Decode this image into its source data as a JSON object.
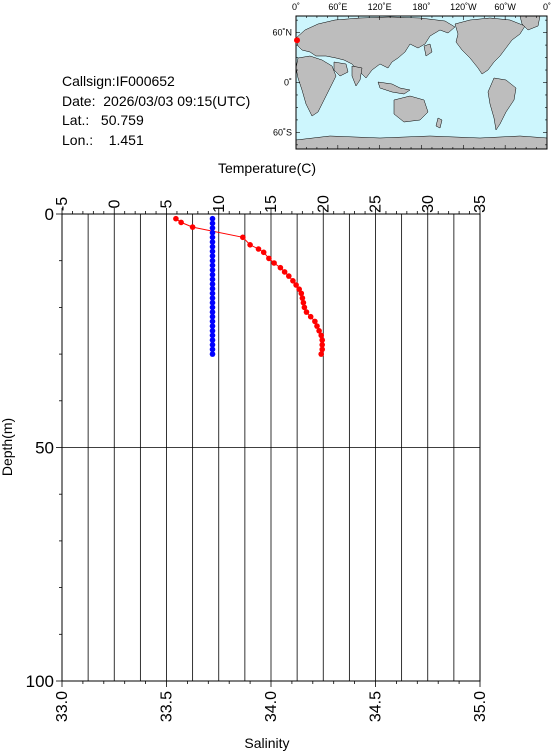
{
  "info": {
    "callsign": "Callsign:IF000652",
    "date": "Date:  2026/03/03 09:15(UTC)",
    "lat": "Lat.:   50.759",
    "lon": "Lon.:    1.451"
  },
  "map": {
    "lon_labels": [
      "0˚",
      "60˚E",
      "120˚E",
      "180˚",
      "120˚W",
      "60˚W",
      "0˚"
    ],
    "lat_labels": [
      "60˚N",
      "0˚",
      "60˚S"
    ],
    "ocean_color": "#cdf6fd",
    "land_color": "#bdbdbd",
    "marker_color": "#ff0000",
    "float_position": {
      "lon": 1.451,
      "lat": 50.759
    }
  },
  "chart_data": {
    "type": "scatter",
    "depth_axis": {
      "label": "Depth(m)",
      "range": [
        0,
        100
      ],
      "ticks": [
        "0",
        "50",
        "100"
      ],
      "inverted": true
    },
    "temperature_axis": {
      "label": "Temperature(C)",
      "range": [
        -5,
        35
      ],
      "ticks": [
        "-5",
        "0",
        "5",
        "10",
        "15",
        "20",
        "25",
        "30",
        "35"
      ]
    },
    "salinity_axis": {
      "label": "Salinity",
      "range": [
        33.0,
        35.0
      ],
      "ticks": [
        "33.0",
        "33.5",
        "34.0",
        "34.5",
        "35.0"
      ]
    },
    "grid": true,
    "series": [
      {
        "color": "#ff0000",
        "axis": "temperature",
        "points": [
          {
            "depth": 1.0,
            "value": 5.9
          },
          {
            "depth": 1.8,
            "value": 6.4
          },
          {
            "depth": 2.8,
            "value": 7.5
          },
          {
            "depth": 5.0,
            "value": 12.3
          },
          {
            "depth": 6.6,
            "value": 13.0
          },
          {
            "depth": 7.5,
            "value": 13.8
          },
          {
            "depth": 8.2,
            "value": 14.3
          },
          {
            "depth": 9.5,
            "value": 14.8
          },
          {
            "depth": 10.5,
            "value": 15.3
          },
          {
            "depth": 11.5,
            "value": 15.9
          },
          {
            "depth": 12.4,
            "value": 16.3
          },
          {
            "depth": 13.3,
            "value": 16.7
          },
          {
            "depth": 14.3,
            "value": 17.1
          },
          {
            "depth": 15.2,
            "value": 17.4
          },
          {
            "depth": 16.1,
            "value": 17.7
          },
          {
            "depth": 17.0,
            "value": 17.9
          },
          {
            "depth": 18.0,
            "value": 18.0
          },
          {
            "depth": 19.0,
            "value": 18.1
          },
          {
            "depth": 20.0,
            "value": 18.2
          },
          {
            "depth": 21.0,
            "value": 18.4
          },
          {
            "depth": 22.0,
            "value": 18.8
          },
          {
            "depth": 23.0,
            "value": 19.2
          },
          {
            "depth": 24.0,
            "value": 19.4
          },
          {
            "depth": 25.0,
            "value": 19.6
          },
          {
            "depth": 26.0,
            "value": 19.8
          },
          {
            "depth": 27.0,
            "value": 19.9
          },
          {
            "depth": 28.0,
            "value": 19.9
          },
          {
            "depth": 29.0,
            "value": 19.9
          },
          {
            "depth": 30.0,
            "value": 19.8
          }
        ]
      },
      {
        "color": "#0000ff",
        "axis": "salinity",
        "points": [
          {
            "depth": 1.0,
            "value": 33.72
          },
          {
            "depth": 2.0,
            "value": 33.72
          },
          {
            "depth": 3.0,
            "value": 33.72
          },
          {
            "depth": 4.0,
            "value": 33.72
          },
          {
            "depth": 5.0,
            "value": 33.72
          },
          {
            "depth": 6.0,
            "value": 33.72
          },
          {
            "depth": 7.0,
            "value": 33.72
          },
          {
            "depth": 8.0,
            "value": 33.72
          },
          {
            "depth": 9.0,
            "value": 33.72
          },
          {
            "depth": 10.0,
            "value": 33.72
          },
          {
            "depth": 11.0,
            "value": 33.72
          },
          {
            "depth": 12.0,
            "value": 33.72
          },
          {
            "depth": 13.0,
            "value": 33.72
          },
          {
            "depth": 14.0,
            "value": 33.72
          },
          {
            "depth": 15.0,
            "value": 33.72
          },
          {
            "depth": 16.0,
            "value": 33.72
          },
          {
            "depth": 17.0,
            "value": 33.72
          },
          {
            "depth": 18.0,
            "value": 33.72
          },
          {
            "depth": 19.0,
            "value": 33.72
          },
          {
            "depth": 20.0,
            "value": 33.72
          },
          {
            "depth": 21.0,
            "value": 33.72
          },
          {
            "depth": 22.0,
            "value": 33.72
          },
          {
            "depth": 23.0,
            "value": 33.72
          },
          {
            "depth": 24.0,
            "value": 33.72
          },
          {
            "depth": 25.0,
            "value": 33.72
          },
          {
            "depth": 26.0,
            "value": 33.72
          },
          {
            "depth": 27.0,
            "value": 33.72
          },
          {
            "depth": 28.0,
            "value": 33.72
          },
          {
            "depth": 29.0,
            "value": 33.72
          },
          {
            "depth": 30.0,
            "value": 33.72
          }
        ]
      }
    ]
  }
}
